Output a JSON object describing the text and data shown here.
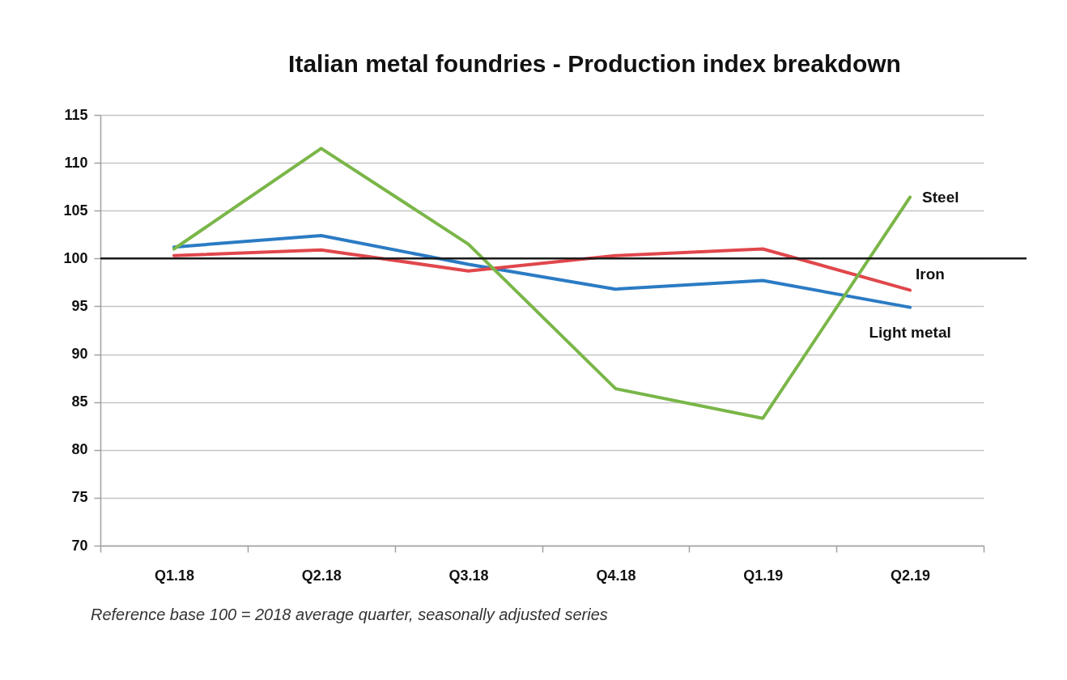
{
  "chart_data": {
    "type": "line",
    "title": "Italian metal foundries - Production index breakdown",
    "categories": [
      "Q1.18",
      "Q2.18",
      "Q3.18",
      "Q4.18",
      "Q1.19",
      "Q2.19"
    ],
    "series": [
      {
        "name": "Light metal",
        "color": "#2b7bc4",
        "values": [
          101.2,
          102.4,
          99.4,
          96.8,
          97.7,
          94.9
        ]
      },
      {
        "name": "Iron",
        "color": "#e0474c",
        "values": [
          100.3,
          100.9,
          98.7,
          100.3,
          101.0,
          96.7
        ]
      },
      {
        "name": "Steel",
        "color": "#7ab648",
        "values": [
          101.0,
          111.5,
          101.5,
          86.4,
          83.3,
          106.4
        ]
      }
    ],
    "ylim": [
      70,
      115
    ],
    "yticks": [
      70,
      75,
      80,
      85,
      90,
      95,
      100,
      105,
      110,
      115
    ],
    "grid": "y",
    "line_style": "solid",
    "ref_lines": [
      {
        "axis": "y",
        "value": 100,
        "color": "#1a1a1a"
      }
    ],
    "annotations": [
      "Reference base 100 = 2018 average quarter, seasonally adjusted series"
    ]
  }
}
